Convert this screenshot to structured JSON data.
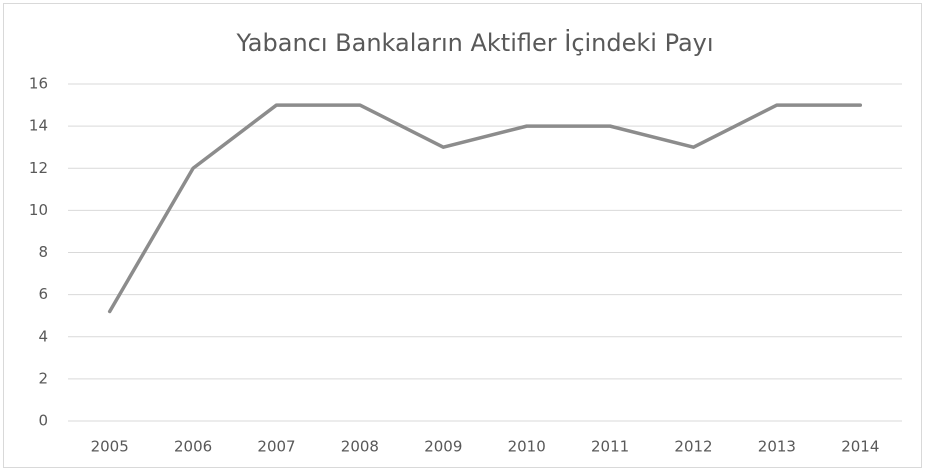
{
  "chart_data": {
    "type": "line",
    "title": "Yabancı Bankaların Aktifler İçindeki Payı",
    "categories": [
      "2005",
      "2006",
      "2007",
      "2008",
      "2009",
      "2010",
      "2011",
      "2012",
      "2013",
      "2014"
    ],
    "values": [
      5.2,
      12,
      15,
      15,
      13,
      14,
      14,
      13,
      15,
      15
    ],
    "color": "#8c8c8c",
    "ylim": [
      0,
      16
    ],
    "yticks": [
      0,
      2,
      4,
      6,
      8,
      10,
      12,
      14,
      16
    ],
    "grid": true
  }
}
